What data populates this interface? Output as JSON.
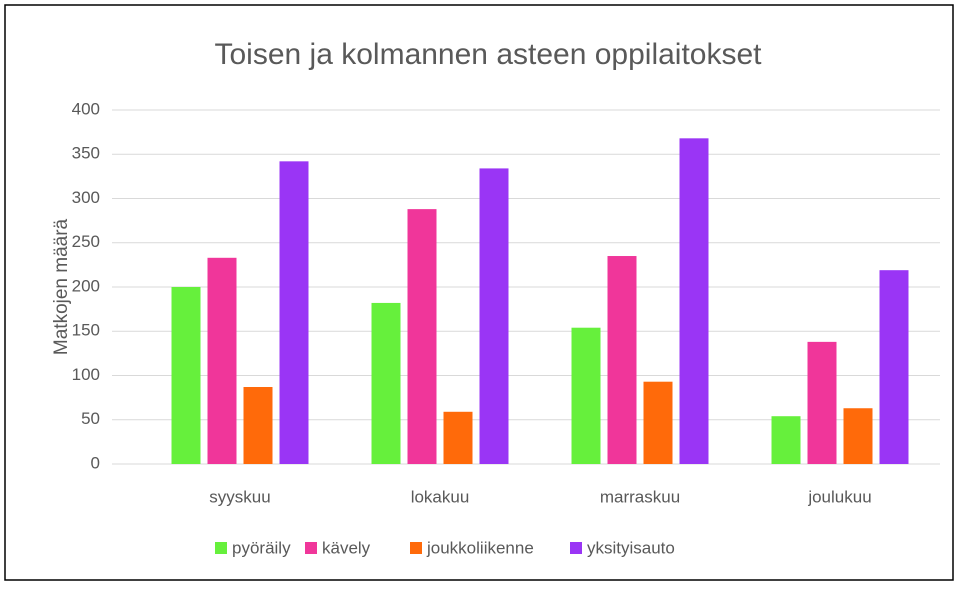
{
  "chart_data": {
    "type": "bar",
    "title": "Toisen ja kolmannen asteen oppilaitokset",
    "ylabel": "Matkojen määrä",
    "categories": [
      "syyskuu",
      "lokakuu",
      "marraskuu",
      "joulukuu"
    ],
    "series": [
      {
        "name": "pyöräily",
        "color": "#66f03c",
        "values": [
          200,
          182,
          154,
          54
        ]
      },
      {
        "name": "kävely",
        "color": "#f0369a",
        "values": [
          233,
          288,
          235,
          138
        ]
      },
      {
        "name": "joukkoliikenne",
        "color": "#ff6a0a",
        "values": [
          87,
          59,
          93,
          63
        ]
      },
      {
        "name": "yksityisauto",
        "color": "#9a35f5",
        "values": [
          342,
          334,
          368,
          219
        ]
      }
    ],
    "ylim": [
      0,
      400
    ],
    "yticks": [
      0,
      50,
      100,
      150,
      200,
      250,
      300,
      350,
      400
    ],
    "grid": true,
    "legend": "bottom"
  }
}
